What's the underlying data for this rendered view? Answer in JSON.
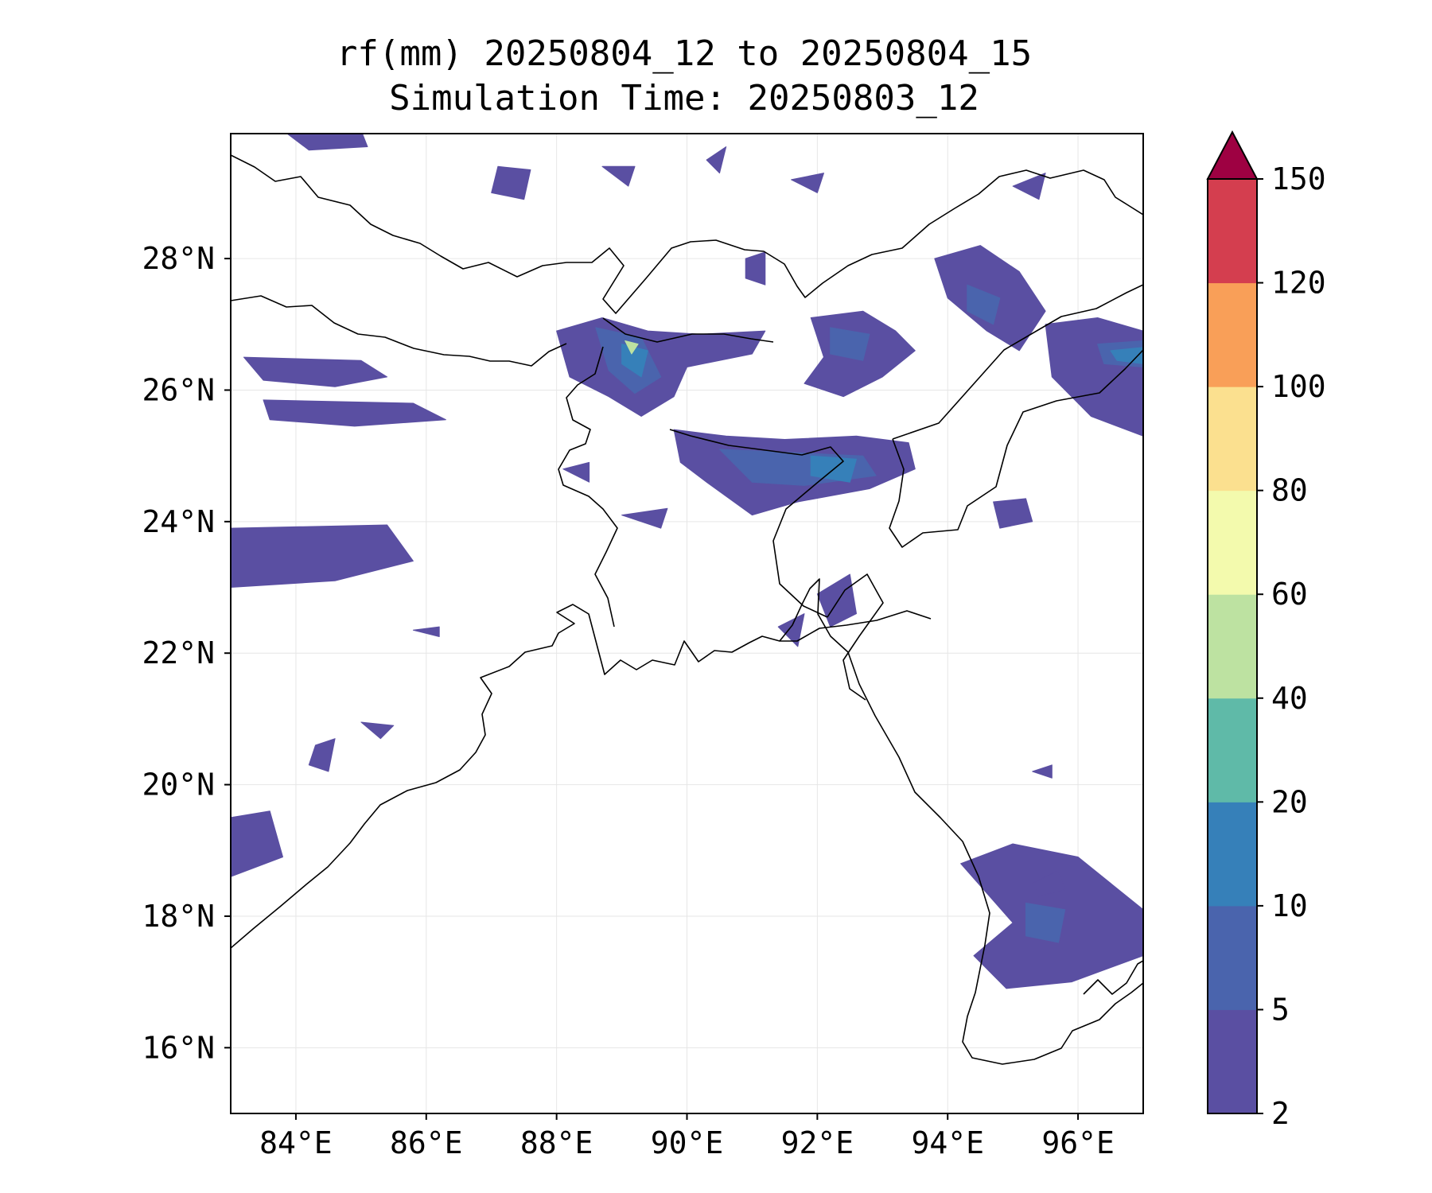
{
  "title": {
    "line1": "rf(mm) 20250804_12 to 20250804_15",
    "line2": "Simulation Time: 20250803_12"
  },
  "map": {
    "lon_range": [
      83.0,
      97.0
    ],
    "lat_range": [
      15.0,
      29.9
    ],
    "lon_ticks": [
      {
        "value": 84,
        "label": "84°E"
      },
      {
        "value": 86,
        "label": "86°E"
      },
      {
        "value": 88,
        "label": "88°E"
      },
      {
        "value": 90,
        "label": "90°E"
      },
      {
        "value": 92,
        "label": "92°E"
      },
      {
        "value": 94,
        "label": "94°E"
      },
      {
        "value": 96,
        "label": "96°E"
      }
    ],
    "lat_ticks": [
      {
        "value": 16,
        "label": "16°N"
      },
      {
        "value": 18,
        "label": "18°N"
      },
      {
        "value": 20,
        "label": "20°N"
      },
      {
        "value": 22,
        "label": "22°N"
      },
      {
        "value": 24,
        "label": "24°N"
      },
      {
        "value": 26,
        "label": "26°N"
      },
      {
        "value": 28,
        "label": "28°N"
      }
    ],
    "gridlines": true,
    "coastline_color": "#000000",
    "rain_areas": [
      {
        "level": 0,
        "pts": [
          [
            88.0,
            26.9
          ],
          [
            88.7,
            27.1
          ],
          [
            89.4,
            26.9
          ],
          [
            90.2,
            26.85
          ],
          [
            91.2,
            26.9
          ],
          [
            91.0,
            26.55
          ],
          [
            90.0,
            26.35
          ],
          [
            89.8,
            25.9
          ],
          [
            89.3,
            25.6
          ],
          [
            88.8,
            25.9
          ],
          [
            88.2,
            26.2
          ]
        ]
      },
      {
        "level": 1,
        "pts": [
          [
            88.6,
            26.95
          ],
          [
            89.3,
            26.8
          ],
          [
            89.6,
            26.2
          ],
          [
            89.2,
            25.95
          ],
          [
            88.8,
            26.3
          ]
        ]
      },
      {
        "level": 2,
        "pts": [
          [
            89.0,
            26.7
          ],
          [
            89.4,
            26.6
          ],
          [
            89.3,
            26.2
          ],
          [
            89.0,
            26.4
          ]
        ]
      },
      {
        "level": 4,
        "pts": [
          [
            89.05,
            26.75
          ],
          [
            89.25,
            26.7
          ],
          [
            89.15,
            26.55
          ]
        ]
      },
      {
        "level": 0,
        "pts": [
          [
            89.8,
            25.4
          ],
          [
            90.6,
            25.3
          ],
          [
            91.5,
            25.25
          ],
          [
            92.6,
            25.3
          ],
          [
            93.4,
            25.2
          ],
          [
            93.5,
            24.8
          ],
          [
            92.8,
            24.5
          ],
          [
            91.7,
            24.3
          ],
          [
            91.0,
            24.1
          ],
          [
            90.3,
            24.6
          ],
          [
            89.9,
            24.9
          ]
        ]
      },
      {
        "level": 1,
        "pts": [
          [
            90.5,
            25.1
          ],
          [
            91.6,
            25.05
          ],
          [
            92.7,
            25.0
          ],
          [
            92.9,
            24.7
          ],
          [
            91.8,
            24.55
          ],
          [
            91.0,
            24.6
          ]
        ]
      },
      {
        "level": 2,
        "pts": [
          [
            91.9,
            25.0
          ],
          [
            92.6,
            24.95
          ],
          [
            92.5,
            24.6
          ],
          [
            91.9,
            24.7
          ]
        ]
      },
      {
        "level": 0,
        "pts": [
          [
            91.9,
            27.1
          ],
          [
            92.7,
            27.2
          ],
          [
            93.2,
            26.9
          ],
          [
            93.5,
            26.6
          ],
          [
            93.0,
            26.2
          ],
          [
            92.4,
            25.9
          ],
          [
            91.8,
            26.1
          ],
          [
            92.1,
            26.5
          ]
        ]
      },
      {
        "level": 1,
        "pts": [
          [
            92.2,
            26.95
          ],
          [
            92.8,
            26.85
          ],
          [
            92.7,
            26.45
          ],
          [
            92.2,
            26.55
          ]
        ]
      },
      {
        "level": 0,
        "pts": [
          [
            93.8,
            28.0
          ],
          [
            94.5,
            28.2
          ],
          [
            95.1,
            27.8
          ],
          [
            95.5,
            27.2
          ],
          [
            95.1,
            26.6
          ],
          [
            94.6,
            26.9
          ],
          [
            94.0,
            27.4
          ]
        ]
      },
      {
        "level": 1,
        "pts": [
          [
            94.3,
            27.6
          ],
          [
            94.8,
            27.4
          ],
          [
            94.7,
            27.0
          ],
          [
            94.3,
            27.2
          ]
        ]
      },
      {
        "level": 0,
        "pts": [
          [
            95.5,
            27.0
          ],
          [
            96.3,
            27.1
          ],
          [
            97.0,
            26.9
          ],
          [
            97.0,
            25.3
          ],
          [
            96.2,
            25.6
          ],
          [
            95.6,
            26.2
          ]
        ]
      },
      {
        "level": 1,
        "pts": [
          [
            96.3,
            26.7
          ],
          [
            97.0,
            26.75
          ],
          [
            97.0,
            26.35
          ],
          [
            96.4,
            26.4
          ]
        ]
      },
      {
        "level": 2,
        "pts": [
          [
            96.5,
            26.6
          ],
          [
            97.0,
            26.65
          ],
          [
            97.0,
            26.4
          ],
          [
            96.6,
            26.45
          ]
        ]
      },
      {
        "level": 0,
        "pts": [
          [
            94.7,
            24.3
          ],
          [
            95.2,
            24.35
          ],
          [
            95.3,
            24.0
          ],
          [
            94.8,
            23.9
          ]
        ]
      },
      {
        "level": 0,
        "pts": [
          [
            83.2,
            26.5
          ],
          [
            85.0,
            26.45
          ],
          [
            85.4,
            26.2
          ],
          [
            84.6,
            26.05
          ],
          [
            83.5,
            26.15
          ]
        ]
      },
      {
        "level": 0,
        "pts": [
          [
            83.5,
            25.85
          ],
          [
            85.8,
            25.8
          ],
          [
            86.3,
            25.55
          ],
          [
            84.9,
            25.45
          ],
          [
            83.6,
            25.55
          ]
        ]
      },
      {
        "level": 0,
        "pts": [
          [
            83.0,
            23.9
          ],
          [
            85.4,
            23.95
          ],
          [
            85.8,
            23.4
          ],
          [
            84.6,
            23.1
          ],
          [
            83.0,
            23.0
          ]
        ]
      },
      {
        "level": 0,
        "pts": [
          [
            83.0,
            19.5
          ],
          [
            83.6,
            19.6
          ],
          [
            83.8,
            18.9
          ],
          [
            83.0,
            18.6
          ]
        ]
      },
      {
        "level": 0,
        "pts": [
          [
            84.3,
            20.6
          ],
          [
            84.6,
            20.7
          ],
          [
            84.5,
            20.2
          ],
          [
            84.2,
            20.3
          ]
        ]
      },
      {
        "level": 0,
        "pts": [
          [
            85.0,
            20.95
          ],
          [
            85.5,
            20.9
          ],
          [
            85.3,
            20.7
          ]
        ]
      },
      {
        "level": 0,
        "pts": [
          [
            94.2,
            18.8
          ],
          [
            95.0,
            19.1
          ],
          [
            96.0,
            18.9
          ],
          [
            97.0,
            18.1
          ],
          [
            97.0,
            17.4
          ],
          [
            95.9,
            17.0
          ],
          [
            94.9,
            16.9
          ],
          [
            94.4,
            17.4
          ],
          [
            95.0,
            17.9
          ]
        ]
      },
      {
        "level": 1,
        "pts": [
          [
            95.2,
            18.2
          ],
          [
            95.8,
            18.1
          ],
          [
            95.7,
            17.6
          ],
          [
            95.2,
            17.7
          ]
        ]
      },
      {
        "level": 0,
        "pts": [
          [
            95.3,
            18.5
          ],
          [
            95.7,
            18.7
          ],
          [
            95.8,
            18.4
          ],
          [
            95.4,
            18.3
          ]
        ]
      },
      {
        "level": 0,
        "pts": [
          [
            95.3,
            20.2
          ],
          [
            95.6,
            20.3
          ],
          [
            95.6,
            20.1
          ]
        ]
      },
      {
        "level": 0,
        "pts": [
          [
            83.8,
            29.95
          ],
          [
            85.0,
            29.95
          ],
          [
            85.1,
            29.7
          ],
          [
            84.2,
            29.65
          ]
        ]
      },
      {
        "level": 0,
        "pts": [
          [
            87.1,
            29.4
          ],
          [
            87.6,
            29.35
          ],
          [
            87.5,
            28.9
          ],
          [
            87.0,
            29.0
          ]
        ]
      },
      {
        "level": 0,
        "pts": [
          [
            88.7,
            29.4
          ],
          [
            89.2,
            29.4
          ],
          [
            89.1,
            29.1
          ]
        ]
      },
      {
        "level": 0,
        "pts": [
          [
            90.3,
            29.5
          ],
          [
            90.6,
            29.7
          ],
          [
            90.5,
            29.3
          ]
        ]
      },
      {
        "level": 0,
        "pts": [
          [
            91.6,
            29.2
          ],
          [
            92.1,
            29.3
          ],
          [
            92.0,
            29.0
          ]
        ]
      },
      {
        "level": 0,
        "pts": [
          [
            95.0,
            29.1
          ],
          [
            95.5,
            29.3
          ],
          [
            95.4,
            28.9
          ]
        ]
      },
      {
        "level": 0,
        "pts": [
          [
            90.9,
            28.0
          ],
          [
            91.2,
            28.1
          ],
          [
            91.2,
            27.6
          ],
          [
            90.9,
            27.7
          ]
        ]
      },
      {
        "level": 0,
        "pts": [
          [
            92.0,
            22.9
          ],
          [
            92.5,
            23.2
          ],
          [
            92.6,
            22.6
          ],
          [
            92.2,
            22.4
          ]
        ]
      },
      {
        "level": 0,
        "pts": [
          [
            91.4,
            22.4
          ],
          [
            91.8,
            22.6
          ],
          [
            91.7,
            22.1
          ]
        ]
      },
      {
        "level": 0,
        "pts": [
          [
            85.8,
            22.35
          ],
          [
            86.2,
            22.4
          ],
          [
            86.2,
            22.25
          ]
        ]
      },
      {
        "level": 0,
        "pts": [
          [
            88.1,
            24.8
          ],
          [
            88.5,
            24.9
          ],
          [
            88.5,
            24.6
          ]
        ]
      },
      {
        "level": 0,
        "pts": [
          [
            89.0,
            24.1
          ],
          [
            89.7,
            24.2
          ],
          [
            89.6,
            23.9
          ]
        ]
      }
    ]
  },
  "colorbar": {
    "boundaries": [
      2,
      5,
      10,
      20,
      40,
      60,
      80,
      100,
      120,
      150
    ],
    "tick_labels": [
      "2",
      "5",
      "10",
      "20",
      "40",
      "60",
      "80",
      "100",
      "120",
      "150"
    ],
    "colors": [
      "#5a4fa2",
      "#4a64ad",
      "#3680b9",
      "#5fbaa8",
      "#bde2a1",
      "#f3faad",
      "#fbe08f",
      "#f99f58",
      "#d43e4f"
    ],
    "extend_color": "#9e0142",
    "extend": "max"
  }
}
